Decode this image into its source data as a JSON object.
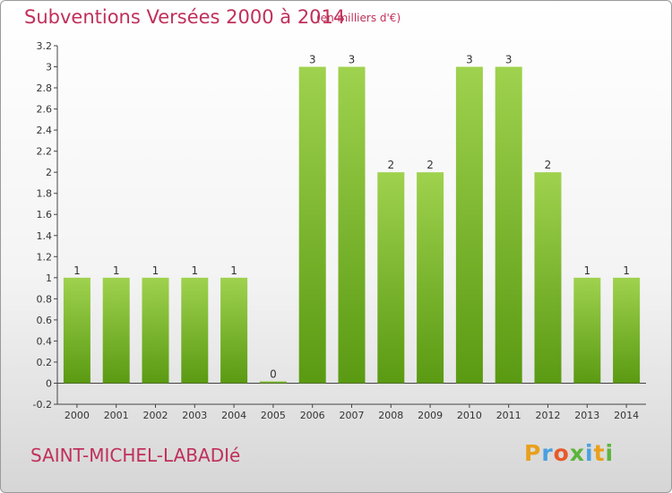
{
  "header": {
    "title": "Subventions Versées 2000 à 2014",
    "unit_note": "(en milliers d'€)"
  },
  "footer": {
    "commune": "SAINT-MICHEL-LABADIé",
    "logo_text": "Proxiti"
  },
  "colors": {
    "title": "#c0305a",
    "bar_light": "#9fd24e",
    "bar_dark": "#5a9a12"
  },
  "chart_data": {
    "type": "bar",
    "categories": [
      "2000",
      "2001",
      "2002",
      "2003",
      "2004",
      "2005",
      "2006",
      "2007",
      "2008",
      "2009",
      "2010",
      "2011",
      "2012",
      "2013",
      "2014"
    ],
    "values": [
      1,
      1,
      1,
      1,
      1,
      0,
      3,
      3,
      2,
      2,
      3,
      3,
      2,
      1,
      1
    ],
    "value_labels": [
      "1",
      "1",
      "1",
      "1",
      "1",
      "0",
      "3",
      "3",
      "2",
      "2",
      "3",
      "3",
      "2",
      "1",
      "1"
    ],
    "y_ticks": [
      -0.2,
      0,
      0.2,
      0.4,
      0.6,
      0.8,
      1,
      1.2,
      1.4,
      1.6,
      1.8,
      2,
      2.2,
      2.4,
      2.6,
      2.8,
      3,
      3.2
    ],
    "y_tick_labels": [
      "-0.2",
      "0",
      "0.2",
      "0.4",
      "0.6",
      "0.8",
      "1",
      "1.2",
      "1.4",
      "1.6",
      "1.8",
      "2",
      "2.2",
      "2.4",
      "2.6",
      "2.8",
      "3",
      "3.2"
    ],
    "ylim": [
      -0.2,
      3.2
    ],
    "grid": false
  }
}
